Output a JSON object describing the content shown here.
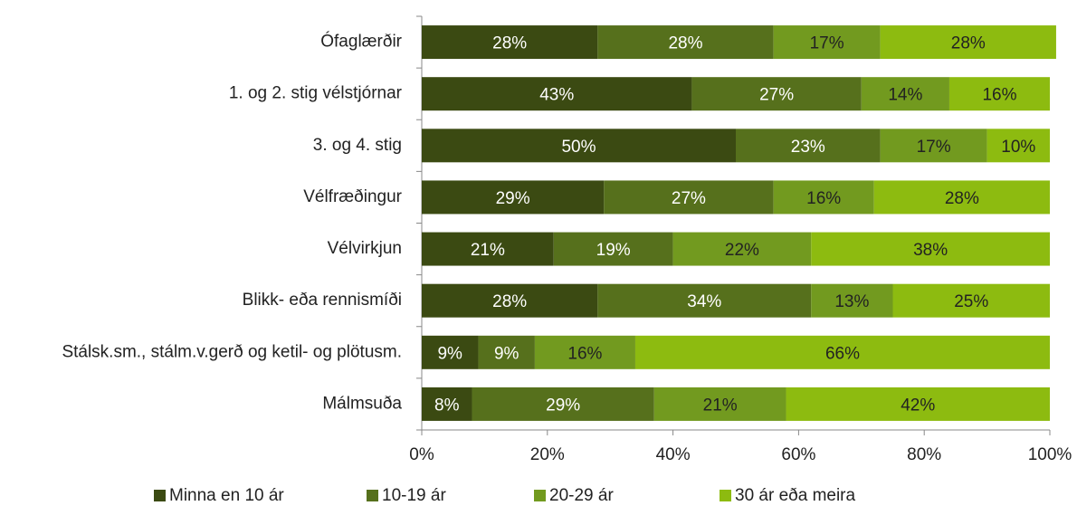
{
  "chart_data": {
    "type": "stacked_bar_horizontal",
    "categories": [
      "Ófaglærðir",
      "1. og 2. stig vélstjórnar",
      "3. og 4. stig",
      "Vélfræðingur",
      "Vélvirkjun",
      "Blikk- eða rennismíði",
      "Stálsk.sm., stálm.v.gerð og ketil- og plötusm.",
      "Málmsuða"
    ],
    "series": [
      {
        "name": "Minna en 10 ár",
        "color": "#3b4a12",
        "values": [
          28,
          43,
          50,
          29,
          21,
          28,
          9,
          8
        ],
        "value_labels": [
          "28%",
          "43%",
          "50%",
          "29%",
          "21%",
          "28%",
          "9%",
          "8%"
        ]
      },
      {
        "name": "10-19 ár",
        "color": "#56701c",
        "values": [
          28,
          27,
          23,
          27,
          19,
          34,
          9,
          29
        ],
        "value_labels": [
          "28%",
          "27%",
          "23%",
          "27%",
          "19%",
          "34%",
          "9%",
          "29%"
        ]
      },
      {
        "name": "20-29 ár",
        "color": "#729a1f",
        "values": [
          17,
          14,
          17,
          16,
          22,
          13,
          16,
          21
        ],
        "value_labels": [
          "17%",
          "14%",
          "17%",
          "16%",
          "22%",
          "13%",
          "16%",
          "21%"
        ]
      },
      {
        "name": "30 ár eða meira",
        "color": "#8dbb10",
        "values": [
          28,
          16,
          10,
          28,
          38,
          25,
          66,
          42
        ],
        "value_labels": [
          "28%",
          "16%",
          "10%",
          "28%",
          "38%",
          "25%",
          "66%",
          "42%"
        ]
      }
    ],
    "xlim": [
      0,
      100
    ],
    "xticks": [
      {
        "value": 0,
        "label": "0%"
      },
      {
        "value": 20,
        "label": "20%"
      },
      {
        "value": 40,
        "label": "40%"
      },
      {
        "value": 60,
        "label": "60%"
      },
      {
        "value": 80,
        "label": "80%"
      },
      {
        "value": 100,
        "label": "100%"
      }
    ],
    "legend": "bottom"
  }
}
